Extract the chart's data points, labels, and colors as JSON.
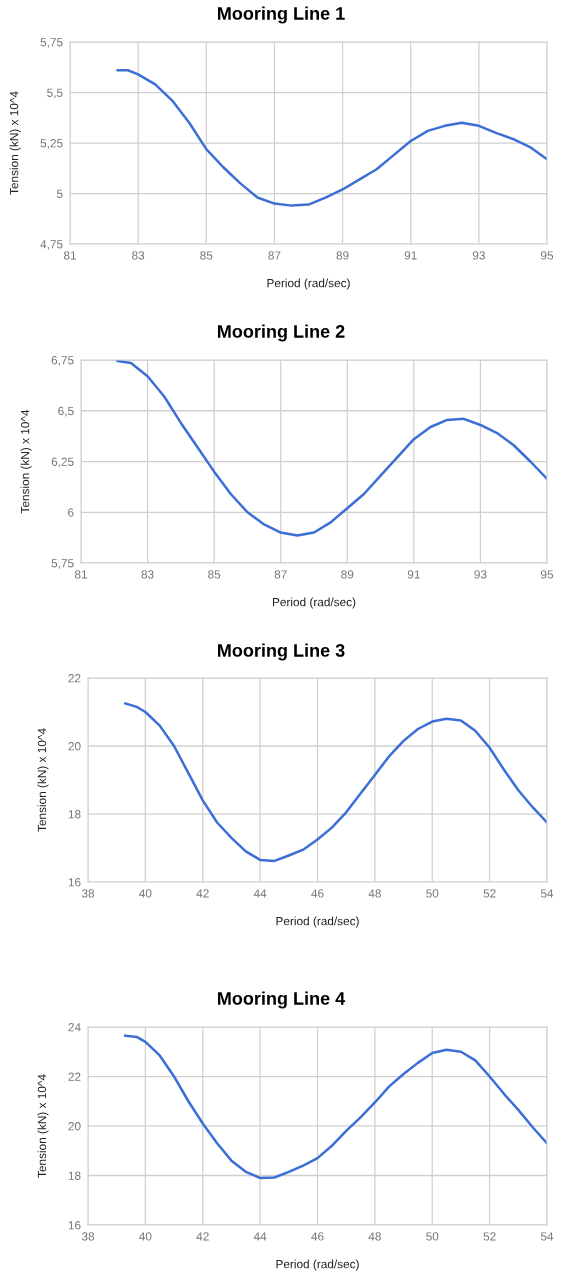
{
  "chart_data": [
    {
      "type": "line",
      "title": "Mooring Line 1",
      "xlabel": "Period (rad/sec)",
      "ylabel": "Tension (kN) x 10^4",
      "grid": true,
      "x": [
        82.4,
        82.7,
        83,
        83.5,
        84,
        84.5,
        85,
        85.5,
        86,
        86.5,
        87,
        87.5,
        88,
        88.5,
        89,
        89.5,
        90,
        90.5,
        91,
        91.5,
        92,
        92.5,
        93,
        93.5,
        94,
        94.5,
        95
      ],
      "series": [
        {
          "color": "#3c6fd6",
          "values": [
            5.61,
            5.61,
            5.59,
            5.54,
            5.46,
            5.35,
            5.22,
            5.13,
            5.05,
            4.98,
            4.95,
            4.94,
            4.945,
            4.98,
            5.02,
            5.07,
            5.12,
            5.19,
            5.26,
            5.31,
            5.335,
            5.35,
            5.335,
            5.3,
            5.27,
            5.23,
            5.17
          ]
        }
      ],
      "xlim": [
        81,
        95
      ],
      "xticks": [
        81,
        83,
        85,
        87,
        89,
        91,
        93,
        95
      ],
      "ylim": [
        4.75,
        5.75
      ],
      "yticks": [
        {
          "value": 4.75,
          "label": "4,75"
        },
        {
          "value": 5,
          "label": "5"
        },
        {
          "value": 5.25,
          "label": "5,25"
        },
        {
          "value": 5.5,
          "label": "5,5"
        },
        {
          "value": 5.75,
          "label": "5,75"
        }
      ]
    },
    {
      "type": "line",
      "title": "Mooring Line 2",
      "xlabel": "Period (rad/sec)",
      "ylabel": "Tension (kN) x 10^4",
      "grid": true,
      "x": [
        82.1,
        82.5,
        83,
        83.5,
        84,
        84.5,
        85,
        85.5,
        86,
        86.5,
        87,
        87.5,
        88,
        88.5,
        89,
        89.5,
        90,
        90.5,
        91,
        91.5,
        92,
        92.5,
        93,
        93.5,
        94,
        94.5,
        95
      ],
      "series": [
        {
          "color": "#3c6fd6",
          "values": [
            6.745,
            6.735,
            6.67,
            6.57,
            6.44,
            6.32,
            6.2,
            6.09,
            6.0,
            5.94,
            5.9,
            5.885,
            5.9,
            5.95,
            6.02,
            6.09,
            6.18,
            6.27,
            6.36,
            6.42,
            6.455,
            6.46,
            6.43,
            6.39,
            6.33,
            6.25,
            6.165
          ]
        }
      ],
      "xlim": [
        81,
        95
      ],
      "xticks": [
        81,
        83,
        85,
        87,
        89,
        91,
        93,
        95
      ],
      "ylim": [
        5.75,
        6.75
      ],
      "yticks": [
        {
          "value": 5.75,
          "label": "5,75"
        },
        {
          "value": 6,
          "label": "6"
        },
        {
          "value": 6.25,
          "label": "6,25"
        },
        {
          "value": 6.5,
          "label": "6,5"
        },
        {
          "value": 6.75,
          "label": "6,75"
        }
      ]
    },
    {
      "type": "line",
      "title": "Mooring Line 3",
      "xlabel": "Period (rad/sec)",
      "ylabel": "Tension (kN) x 10^4",
      "grid": true,
      "x": [
        39.3,
        39.7,
        40,
        40.5,
        41,
        41.5,
        42,
        42.5,
        43,
        43.5,
        44,
        44.5,
        45,
        45.5,
        46,
        46.5,
        47,
        47.5,
        48,
        48.5,
        49,
        49.5,
        50,
        50.5,
        51,
        51.5,
        52,
        52.5,
        53,
        53.5,
        54
      ],
      "series": [
        {
          "color": "#3c6fd6",
          "values": [
            21.25,
            21.15,
            21.0,
            20.6,
            20.0,
            19.2,
            18.4,
            17.75,
            17.3,
            16.9,
            16.65,
            16.62,
            16.78,
            16.95,
            17.25,
            17.6,
            18.05,
            18.6,
            19.15,
            19.7,
            20.15,
            20.5,
            20.72,
            20.8,
            20.75,
            20.45,
            19.95,
            19.3,
            18.7,
            18.2,
            17.75
          ]
        }
      ],
      "xlim": [
        38,
        54
      ],
      "xticks": [
        38,
        40,
        42,
        44,
        46,
        48,
        50,
        52,
        54
      ],
      "ylim": [
        16,
        22
      ],
      "yticks": [
        16,
        18,
        20,
        22
      ]
    },
    {
      "type": "line",
      "title": "Mooring Line 4",
      "xlabel": "Period (rad/sec)",
      "ylabel": "Tension (kN) x 10^4",
      "grid": true,
      "x": [
        39.3,
        39.7,
        40,
        40.5,
        41,
        41.5,
        42,
        42.5,
        43,
        43.5,
        44,
        44.5,
        45,
        45.5,
        46,
        46.5,
        47,
        47.5,
        48,
        48.5,
        49,
        49.5,
        50,
        50.5,
        51,
        51.5,
        52,
        52.5,
        53,
        53.5,
        54
      ],
      "series": [
        {
          "color": "#3c6fd6",
          "values": [
            23.65,
            23.6,
            23.4,
            22.85,
            22.0,
            21.0,
            20.1,
            19.3,
            18.6,
            18.15,
            17.9,
            17.92,
            18.15,
            18.4,
            18.7,
            19.2,
            19.8,
            20.35,
            20.95,
            21.6,
            22.1,
            22.55,
            22.95,
            23.08,
            23.0,
            22.65,
            22.0,
            21.3,
            20.65,
            19.95,
            19.3
          ]
        }
      ],
      "xlim": [
        38,
        54
      ],
      "xticks": [
        38,
        40,
        42,
        44,
        46,
        48,
        50,
        52,
        54
      ],
      "ylim": [
        16,
        24
      ],
      "yticks": [
        16,
        18,
        20,
        22,
        24
      ]
    }
  ]
}
